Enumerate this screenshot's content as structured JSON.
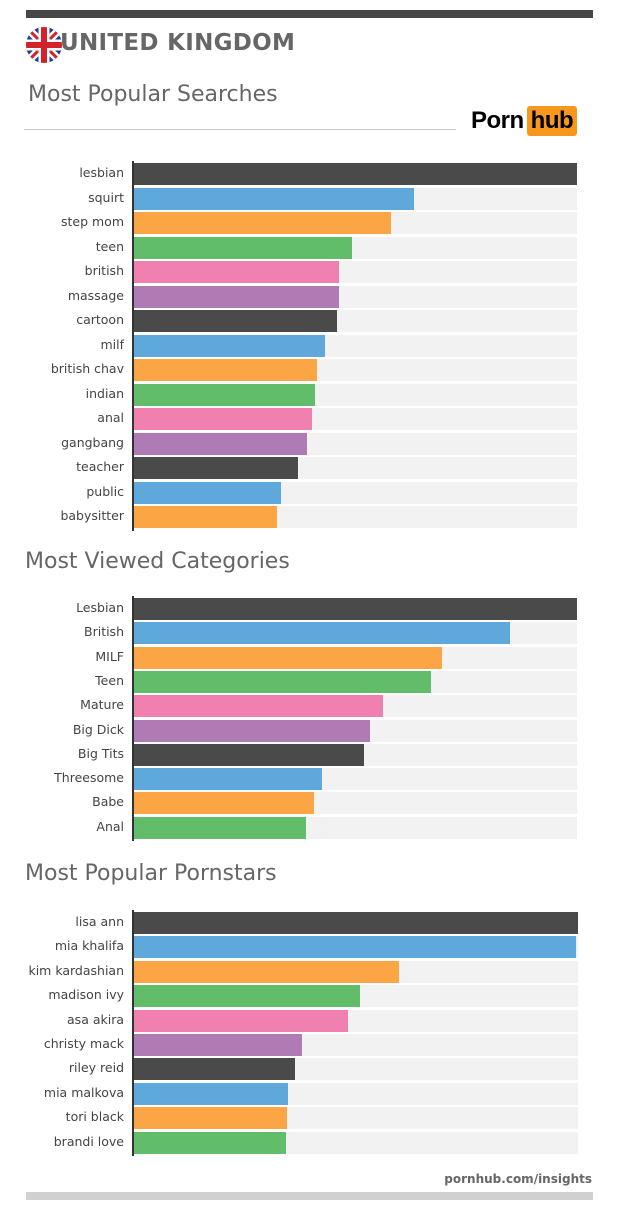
{
  "header": {
    "country": "UNITED KINGDOM",
    "logo_left": "Porn",
    "logo_right": "hub",
    "footer": "pornhub.com/insights"
  },
  "colors": {
    "palette": [
      "#4a4a4a",
      "#5fa8dc",
      "#fba545",
      "#62bd6b",
      "#f080b0",
      "#b07ab5"
    ],
    "track": "#f2f2f2",
    "logo_accent": "#f7971d"
  },
  "chart_data": [
    {
      "type": "bar",
      "orientation": "horizontal",
      "title": "Most Popular Searches",
      "xlim": [
        0,
        100
      ],
      "grid": false,
      "categories": [
        "lesbian",
        "squirt",
        "step mom",
        "teen",
        "british",
        "massage",
        "cartoon",
        "milf",
        "british chav",
        "indian",
        "anal",
        "gangbang",
        "teacher",
        "public",
        "babysitter"
      ],
      "values": [
        100,
        63.3,
        58.1,
        49.3,
        46.4,
        46.4,
        45.9,
        43.2,
        41.4,
        41.0,
        40.3,
        39.2,
        37.2,
        33.3,
        32.4
      ]
    },
    {
      "type": "bar",
      "orientation": "horizontal",
      "title": "Most Viewed Categories",
      "xlim": [
        0,
        100
      ],
      "grid": false,
      "categories": [
        "Lesbian",
        "British",
        "MILF",
        "Teen",
        "Mature",
        "Big Dick",
        "Big Tits",
        "Threesome",
        "Babe",
        "Anal"
      ],
      "values": [
        100,
        84.9,
        69.6,
        67.1,
        56.3,
        53.4,
        52.0,
        42.6,
        40.8,
        39.0
      ]
    },
    {
      "type": "bar",
      "orientation": "horizontal",
      "title": "Most Popular Pornstars",
      "xlim": [
        0,
        100
      ],
      "grid": false,
      "categories": [
        "lisa ann",
        "mia khalifa",
        "kim kardashian",
        "madison ivy",
        "asa akira",
        "christy mack",
        "riley reid",
        "mia malkova",
        "tori black",
        "brandi love"
      ],
      "values": [
        100,
        99.5,
        59.8,
        51.0,
        48.3,
        38.0,
        36.4,
        34.8,
        34.6,
        34.4
      ]
    }
  ]
}
